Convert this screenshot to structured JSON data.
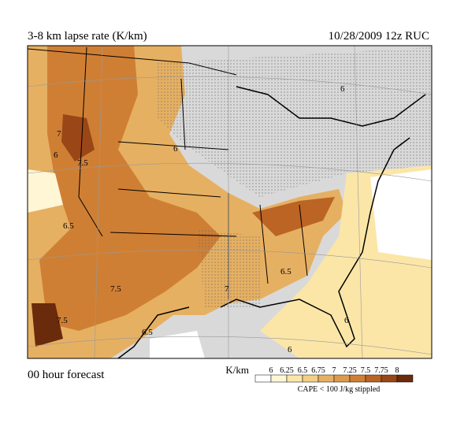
{
  "header": {
    "title": "3-8 km lapse rate (K/km)",
    "run": "10/28/2009 12z RUC"
  },
  "footer": {
    "forecast": "00 hour forecast"
  },
  "legend": {
    "unit": "K/km",
    "levels": [
      6,
      6.25,
      6.5,
      6.75,
      7,
      7.25,
      7.5,
      7.75,
      8
    ],
    "colors": [
      "#ffffff",
      "#fff6d6",
      "#fbe6a8",
      "#f2cf85",
      "#e6b062",
      "#dc9a4a",
      "#cf7f34",
      "#bb6424",
      "#9a4617",
      "#6a2a0c"
    ],
    "note": "CAPE < 100 J/kg stippled"
  },
  "contour_labels": [
    "6",
    "7",
    "7.5",
    "6.5",
    "7.5",
    "7.5",
    "6",
    "6.5",
    "6",
    "6",
    "6.5",
    "7",
    "6"
  ]
}
